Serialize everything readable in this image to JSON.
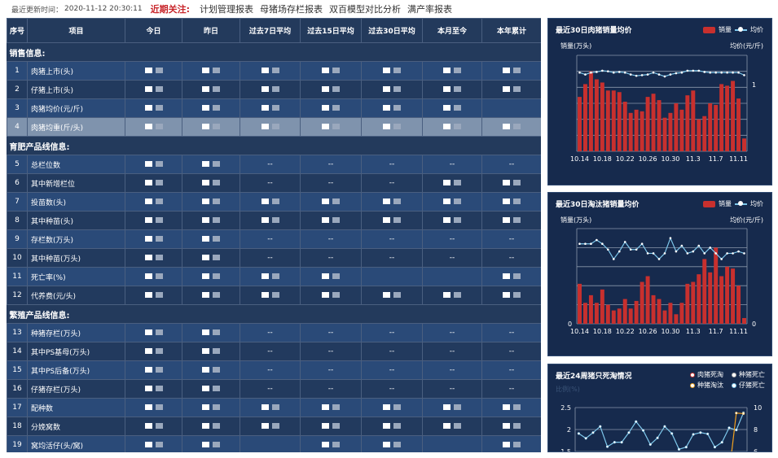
{
  "topbar": {
    "update_label": "最近更新时间：",
    "update_time": "2020-11-12 20:30:11",
    "focus_label": "近期关注:",
    "links": [
      "计划管理报表",
      "母猪场存栏报表",
      "双百模型对比分析",
      "满产率报表"
    ]
  },
  "table": {
    "headers": [
      "序号",
      "项目",
      "今日",
      "昨日",
      "过去7日平均",
      "过去15日平均",
      "过去30日平均",
      "本月至今",
      "本年累计"
    ],
    "sections": [
      {
        "title": "销售信息:",
        "rows": [
          {
            "no": "1",
            "name": "肉猪上市(头)",
            "cells": [
              null,
              null,
              null,
              null,
              null,
              null,
              null
            ]
          },
          {
            "no": "2",
            "name": "仔猪上市(头)",
            "cells": [
              null,
              null,
              null,
              null,
              null,
              null,
              null
            ]
          },
          {
            "no": "3",
            "name": "肉猪均价(元/斤)",
            "cells": [
              null,
              null,
              null,
              null,
              null,
              null,
              ""
            ]
          },
          {
            "no": "4",
            "name": "肉猪均重(斤/头)",
            "cells": [
              null,
              null,
              null,
              null,
              null,
              null,
              null
            ],
            "selected": true
          }
        ]
      },
      {
        "title": "育肥产品线信息:",
        "rows": [
          {
            "no": "5",
            "name": "总栏位数",
            "cells": [
              null,
              null,
              "--",
              "--",
              "--",
              "--",
              "--"
            ]
          },
          {
            "no": "6",
            "name": "其中新增栏位",
            "cells": [
              null,
              null,
              "--",
              "--",
              "--",
              null,
              null
            ]
          },
          {
            "no": "7",
            "name": "投苗数(头)",
            "cells": [
              null,
              null,
              null,
              null,
              null,
              null,
              null
            ]
          },
          {
            "no": "8",
            "name": "其中种苗(头)",
            "cells": [
              null,
              null,
              null,
              null,
              null,
              null,
              null
            ]
          },
          {
            "no": "9",
            "name": "存栏数(万头)",
            "cells": [
              null,
              null,
              "--",
              "--",
              "--",
              "--",
              "--"
            ]
          },
          {
            "no": "10",
            "name": "其中种苗(万头)",
            "cells": [
              null,
              null,
              "--",
              "--",
              "--",
              "--",
              "--"
            ]
          },
          {
            "no": "11",
            "name": "死亡率(%)",
            "cells": [
              null,
              null,
              null,
              null,
              "",
              "",
              null
            ]
          },
          {
            "no": "12",
            "name": "代养费(元/头)",
            "cells": [
              null,
              null,
              null,
              null,
              null,
              null,
              null
            ]
          }
        ]
      },
      {
        "title": "繁殖产品线信息:",
        "rows": [
          {
            "no": "13",
            "name": "种猪存栏(万头)",
            "cells": [
              null,
              null,
              "--",
              "--",
              "--",
              "--",
              "--"
            ]
          },
          {
            "no": "14",
            "name": "其中PS基母(万头)",
            "cells": [
              null,
              null,
              "--",
              "--",
              "--",
              "--",
              "--"
            ]
          },
          {
            "no": "15",
            "name": "其中PS后备(万头)",
            "cells": [
              null,
              null,
              "--",
              "--",
              "--",
              "--",
              "--"
            ]
          },
          {
            "no": "16",
            "name": "仔猪存栏(万头)",
            "cells": [
              null,
              null,
              "--",
              "--",
              "--",
              "--",
              "--"
            ]
          },
          {
            "no": "17",
            "name": "配种数",
            "cells": [
              null,
              null,
              null,
              null,
              null,
              null,
              null
            ]
          },
          {
            "no": "18",
            "name": "分娩窝数",
            "cells": [
              null,
              null,
              null,
              null,
              null,
              null,
              null
            ]
          },
          {
            "no": "19",
            "name": "窝均活仔(头/窝)",
            "cells": [
              null,
              null,
              "",
              null,
              null,
              "",
              null
            ]
          }
        ]
      }
    ]
  },
  "colors": {
    "bar": "#c8302e",
    "line": "#7ec8ec",
    "orange": "#f0a020",
    "panel": "#162a4d"
  },
  "chart_data": [
    {
      "type": "bar+line",
      "title": "最近30日肉猪销量均价",
      "legend": [
        "销量",
        "均价"
      ],
      "ylabel": "销量(万头)",
      "y2label": "均价(元/斤)",
      "x_ticks": [
        "10.14",
        "10.18",
        "10.22",
        "10.26",
        "10.30",
        "11.3",
        "11.7",
        "11.11"
      ],
      "ylim": [
        0,
        6
      ],
      "y2lim": [
        0,
        1.5
      ],
      "y2_ticks": [
        "1"
      ],
      "bars": [
        3.4,
        4.2,
        5.0,
        4.5,
        4.3,
        3.8,
        3.8,
        3.7,
        3.1,
        2.4,
        2.6,
        2.5,
        3.4,
        3.6,
        3.2,
        2.1,
        2.4,
        3.0,
        2.6,
        3.5,
        3.8,
        2.0,
        2.2,
        3.0,
        2.9,
        4.2,
        4.1,
        4.4,
        3.3,
        0.8
      ],
      "line": [
        1.23,
        1.2,
        1.23,
        1.24,
        1.26,
        1.25,
        1.23,
        1.24,
        1.23,
        1.2,
        1.18,
        1.19,
        1.2,
        1.23,
        1.2,
        1.17,
        1.2,
        1.22,
        1.23,
        1.26,
        1.26,
        1.26,
        1.24,
        1.23,
        1.23,
        1.23,
        1.23,
        1.23,
        1.23,
        1.19
      ]
    },
    {
      "type": "bar+line",
      "title": "最近30日淘汰猪销量均价",
      "legend": [
        "销量",
        "均价"
      ],
      "ylabel": "销量(万头)",
      "y2label": "均价(元/斤)",
      "x_ticks": [
        "10.14",
        "10.18",
        "10.22",
        "10.26",
        "10.30",
        "11.3",
        "11.7",
        "11.11"
      ],
      "ylim": [
        0,
        5
      ],
      "y_ticks": [
        "0"
      ],
      "y2_ticks": [
        "0"
      ],
      "bars": [
        2.1,
        1.1,
        1.5,
        1.1,
        1.8,
        1.0,
        0.7,
        0.8,
        1.3,
        0.8,
        1.2,
        2.2,
        2.5,
        1.5,
        1.3,
        0.7,
        1.1,
        0.5,
        1.1,
        2.1,
        2.2,
        2.6,
        3.4,
        2.7,
        4.0,
        2.5,
        3.0,
        2.9,
        2.0,
        0.3
      ],
      "line": [
        4.2,
        4.2,
        4.2,
        4.4,
        4.2,
        3.9,
        3.4,
        3.8,
        4.3,
        3.9,
        3.9,
        4.2,
        3.7,
        3.7,
        3.4,
        3.7,
        4.5,
        3.8,
        4.1,
        3.7,
        3.8,
        4.1,
        3.7,
        4.0,
        3.7,
        3.4,
        3.7,
        3.7,
        3.8,
        3.7
      ]
    },
    {
      "type": "line",
      "title": "最近24周猪只死淘情况",
      "legend": [
        "肉猪死淘",
        "种猪死亡",
        "种猪淘汰",
        "仔猪死亡"
      ],
      "ylabel": "比例(%)",
      "y_ticks": [
        "2.5",
        "2",
        "1.5"
      ],
      "y2_ticks": [
        "10",
        "8",
        "6"
      ],
      "ylim": [
        1.5,
        2.5
      ],
      "y2lim": [
        6,
        10
      ],
      "series": [
        {
          "name": "仔猪死亡",
          "axis": "left",
          "values": [
            1.91,
            1.8,
            1.93,
            2.07,
            1.61,
            1.71,
            1.71,
            1.93,
            2.18,
            1.98,
            1.66,
            1.81,
            2.07,
            1.91,
            1.55,
            1.6,
            1.89,
            1.93,
            1.9,
            1.6,
            1.71,
            2.04,
            1.99,
            2.38
          ]
        },
        {
          "name": "种猪淘汰",
          "axis": "right",
          "values": [
            null,
            null,
            null,
            null,
            null,
            null,
            null,
            null,
            null,
            null,
            null,
            null,
            null,
            null,
            null,
            null,
            null,
            null,
            null,
            5.7,
            null,
            4.0,
            9.5,
            9.45
          ]
        }
      ]
    }
  ]
}
